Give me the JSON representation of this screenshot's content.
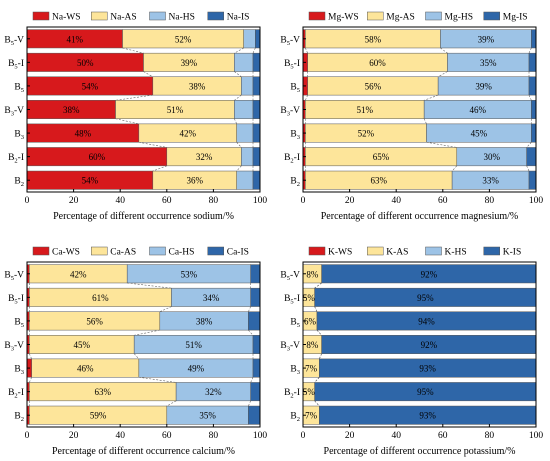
{
  "colors": {
    "WS": "#d7191c",
    "AS": "#fde59a",
    "HS": "#9dc3e6",
    "IS": "#2e66a8"
  },
  "chart_data": [
    {
      "type": "bar",
      "orientation": "horizontal",
      "stacked": true,
      "xlabel": "Percentage of different occurrence sodium/%",
      "xlim": [
        0,
        100
      ],
      "xticks": [
        "0",
        "20",
        "40",
        "60",
        "80",
        "100"
      ],
      "legend_position": "top",
      "categories": [
        "B5-V",
        "B5-I",
        "B5",
        "B3-V",
        "B3",
        "B2-I",
        "B2"
      ],
      "category_labels": [
        {
          "main": "B",
          "sub": "5",
          "suffix": "-V"
        },
        {
          "main": "B",
          "sub": "5",
          "suffix": "-I"
        },
        {
          "main": "B",
          "sub": "5",
          "suffix": ""
        },
        {
          "main": "B",
          "sub": "3",
          "suffix": "-V"
        },
        {
          "main": "B",
          "sub": "3",
          "suffix": ""
        },
        {
          "main": "B",
          "sub": "2",
          "suffix": "-I"
        },
        {
          "main": "B",
          "sub": "2",
          "suffix": ""
        }
      ],
      "series": [
        {
          "name": "Na-WS",
          "key": "WS",
          "values": [
            41,
            50,
            54,
            38,
            48,
            60,
            54
          ],
          "labels": [
            "41%",
            "50%",
            "54%",
            "38%",
            "48%",
            "60%",
            "54%"
          ]
        },
        {
          "name": "Na-AS",
          "key": "AS",
          "values": [
            52,
            39,
            38,
            51,
            42,
            32,
            36
          ],
          "labels": [
            "52%",
            "39%",
            "38%",
            "51%",
            "42%",
            "32%",
            "36%"
          ]
        },
        {
          "name": "Na-HS",
          "key": "HS",
          "values": [
            5,
            8,
            5,
            8,
            7,
            5,
            7
          ],
          "labels": [
            "",
            "",
            "",
            "",
            "",
            "",
            ""
          ]
        },
        {
          "name": "Na-IS",
          "key": "IS",
          "values": [
            2,
            3,
            3,
            3,
            3,
            3,
            3
          ],
          "labels": [
            "",
            "",
            "",
            "",
            "",
            "",
            ""
          ]
        }
      ]
    },
    {
      "type": "bar",
      "orientation": "horizontal",
      "stacked": true,
      "xlabel": "Percentage of different occurrence magnesium/%",
      "xlim": [
        0,
        100
      ],
      "xticks": [
        "0",
        "20",
        "40",
        "60",
        "80",
        "100"
      ],
      "legend_position": "top",
      "categories": [
        "B5-V",
        "B5-I",
        "B5",
        "B3-V",
        "B3",
        "B2-I",
        "B2"
      ],
      "category_labels": [
        {
          "main": "B",
          "sub": "5",
          "suffix": "-V"
        },
        {
          "main": "B",
          "sub": "5",
          "suffix": "-I"
        },
        {
          "main": "B",
          "sub": "5",
          "suffix": ""
        },
        {
          "main": "B",
          "sub": "3",
          "suffix": "-V"
        },
        {
          "main": "B",
          "sub": "3",
          "suffix": ""
        },
        {
          "main": "B",
          "sub": "2",
          "suffix": "-I"
        },
        {
          "main": "B",
          "sub": "2",
          "suffix": ""
        }
      ],
      "series": [
        {
          "name": "Mg-WS",
          "key": "WS",
          "values": [
            1,
            2,
            2,
            1,
            1,
            1,
            1
          ],
          "labels": [
            "",
            "",
            "",
            "",
            "",
            "",
            ""
          ]
        },
        {
          "name": "Mg-AS",
          "key": "AS",
          "values": [
            58,
            60,
            56,
            51,
            52,
            65,
            63
          ],
          "labels": [
            "58%",
            "60%",
            "56%",
            "51%",
            "52%",
            "65%",
            "63%"
          ]
        },
        {
          "name": "Mg-HS",
          "key": "HS",
          "values": [
            39,
            35,
            39,
            46,
            45,
            30,
            33
          ],
          "labels": [
            "39%",
            "35%",
            "39%",
            "46%",
            "45%",
            "30%",
            "33%"
          ]
        },
        {
          "name": "Mg-IS",
          "key": "IS",
          "values": [
            2,
            3,
            3,
            2,
            2,
            4,
            3
          ],
          "labels": [
            "",
            "",
            "",
            "",
            "",
            "",
            ""
          ]
        }
      ]
    },
    {
      "type": "bar",
      "orientation": "horizontal",
      "stacked": true,
      "xlabel": "Percentage of different occurrence calcium/%",
      "xlim": [
        0,
        100
      ],
      "xticks": [
        "0",
        "20",
        "40",
        "60",
        "80",
        "100"
      ],
      "legend_position": "top",
      "categories": [
        "B5-V",
        "B5-I",
        "B5",
        "B3-V",
        "B3",
        "B2-I",
        "B2"
      ],
      "category_labels": [
        {
          "main": "B",
          "sub": "5",
          "suffix": "-V"
        },
        {
          "main": "B",
          "sub": "5",
          "suffix": "-I"
        },
        {
          "main": "B",
          "sub": "5",
          "suffix": ""
        },
        {
          "main": "B",
          "sub": "3",
          "suffix": "-V"
        },
        {
          "main": "B",
          "sub": "3",
          "suffix": ""
        },
        {
          "main": "B",
          "sub": "2",
          "suffix": "-I"
        },
        {
          "main": "B",
          "sub": "2",
          "suffix": ""
        }
      ],
      "series": [
        {
          "name": "Ca-WS",
          "key": "WS",
          "values": [
            1,
            1,
            1,
            1,
            2,
            1,
            1
          ],
          "labels": [
            "",
            "",
            "",
            "",
            "",
            "",
            ""
          ]
        },
        {
          "name": "Ca-AS",
          "key": "AS",
          "values": [
            42,
            61,
            56,
            45,
            46,
            63,
            59
          ],
          "labels": [
            "42%",
            "61%",
            "56%",
            "45%",
            "46%",
            "63%",
            "59%"
          ]
        },
        {
          "name": "Ca-HS",
          "key": "HS",
          "values": [
            53,
            34,
            38,
            51,
            49,
            32,
            35
          ],
          "labels": [
            "53%",
            "34%",
            "38%",
            "51%",
            "49%",
            "32%",
            "35%"
          ]
        },
        {
          "name": "Ca-IS",
          "key": "IS",
          "values": [
            4,
            4,
            5,
            3,
            3,
            4,
            5
          ],
          "labels": [
            "",
            "",
            "",
            "",
            "",
            "",
            ""
          ]
        }
      ]
    },
    {
      "type": "bar",
      "orientation": "horizontal",
      "stacked": true,
      "xlabel": "Percentage of different occurrence potassium/%",
      "xlim": [
        0,
        100
      ],
      "xticks": [
        "0",
        "20",
        "40",
        "60",
        "80",
        "100"
      ],
      "legend_position": "top",
      "categories": [
        "B5-V",
        "B5-I",
        "B5",
        "B3-V",
        "B3",
        "B2-I",
        "B2"
      ],
      "category_labels": [
        {
          "main": "B",
          "sub": "5",
          "suffix": "-V"
        },
        {
          "main": "B",
          "sub": "5",
          "suffix": "-I"
        },
        {
          "main": "B",
          "sub": "5",
          "suffix": ""
        },
        {
          "main": "B",
          "sub": "3",
          "suffix": "-V"
        },
        {
          "main": "B",
          "sub": "3",
          "suffix": ""
        },
        {
          "main": "B",
          "sub": "2",
          "suffix": "-I"
        },
        {
          "main": "B",
          "sub": "2",
          "suffix": ""
        }
      ],
      "series": [
        {
          "name": "K-WS",
          "key": "WS",
          "values": [
            0,
            0,
            0,
            0,
            0,
            0,
            0
          ],
          "labels": [
            "",
            "",
            "",
            "",
            "",
            "",
            ""
          ]
        },
        {
          "name": "K-AS",
          "key": "AS",
          "values": [
            8,
            5,
            6,
            8,
            7,
            5,
            7
          ],
          "labels": [
            "8%",
            "5%",
            "6%",
            "8%",
            "7%",
            "5%",
            "7%"
          ]
        },
        {
          "name": "K-HS",
          "key": "HS",
          "values": [
            0,
            0,
            0,
            0,
            0,
            0,
            0
          ],
          "labels": [
            "",
            "",
            "",
            "",
            "",
            "",
            ""
          ]
        },
        {
          "name": "K-IS",
          "key": "IS",
          "values": [
            92,
            95,
            94,
            92,
            93,
            95,
            93
          ],
          "labels": [
            "92%",
            "95%",
            "94%",
            "92%",
            "93%",
            "95%",
            "93%"
          ]
        }
      ]
    }
  ]
}
